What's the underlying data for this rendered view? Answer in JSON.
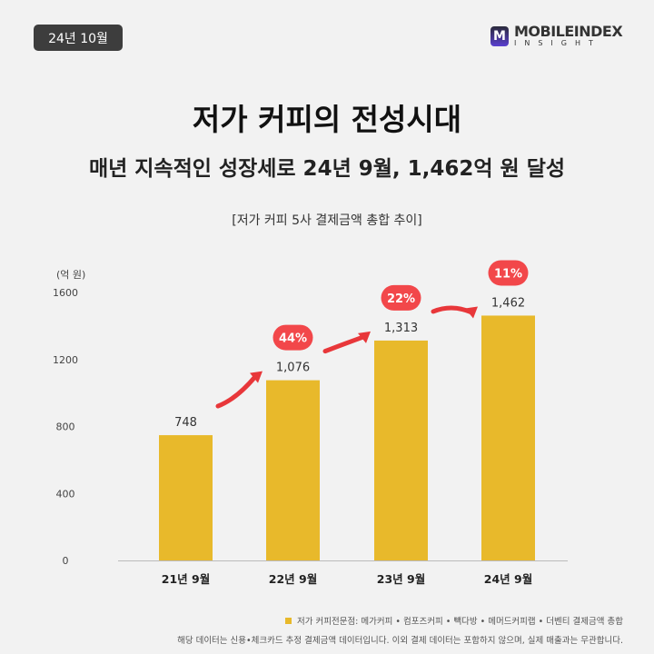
{
  "badge": "24년 10월",
  "logo": {
    "line1": "MOBILEINDEX",
    "line2": "INSIGHT",
    "mark": "M"
  },
  "title": "저가 커피의 전성시대",
  "subtitle": "매년 지속적인 성장세로 24년 9월, 1,462억 원 달성",
  "colors": {
    "bar": "#e8b92b",
    "growth_pill": "#f2474a",
    "arrow": "#e8373a",
    "background": "#f2f2f2"
  },
  "chart_data": {
    "type": "bar",
    "title": "[저가 커피 5사 결제금액 총합 추이]",
    "ylabel": "(억 원)",
    "categories": [
      "21년 9월",
      "22년 9월",
      "23년 9월",
      "24년 9월"
    ],
    "values": [
      748,
      1076,
      1313,
      1462
    ],
    "value_labels": [
      "748",
      "1,076",
      "1,313",
      "1,462"
    ],
    "growth_labels": [
      "44%",
      "22%",
      "11%"
    ],
    "ylim": [
      0,
      1600
    ],
    "yticks": [
      "0",
      "400",
      "800",
      "1200",
      "1600"
    ],
    "grid": false
  },
  "legend": "저가 커피전문점: 메가커피 • 컴포즈커피 • 빽다방 • 메머드커피랩 • 더벤티 결제금액 총합",
  "note": "해당 데이터는 신용•체크카드 추정 결제금액 데이터입니다. 이외 결제 데이터는 포함하지 않으며, 실제 매출과는 무관합니다."
}
